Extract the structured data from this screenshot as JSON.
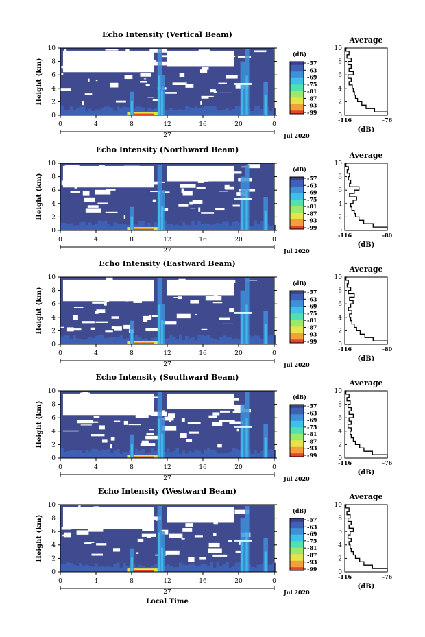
{
  "chart_data": [
    {
      "type": "heatmap",
      "title": "Echo Intensity (Vertical Beam)",
      "ylabel": "Height (km)",
      "y_ticks": [
        "0",
        "2",
        "4",
        "6",
        "8",
        "10"
      ],
      "x_ticks": [
        "0",
        "4",
        "8",
        "12",
        "16",
        "20",
        "0"
      ],
      "date_label": "27",
      "month_year": "Jul 2020",
      "colorbar": {
        "unit": "(dB)",
        "ticks": [
          "-57",
          "-63",
          "-69",
          "-75",
          "-81",
          "-87",
          "-93",
          "-99"
        ]
      },
      "average": {
        "title": "Average",
        "xlabel": "(dB)",
        "x_ticks": [
          "-116",
          "-76"
        ],
        "y_ticks": [
          "0",
          "2",
          "4",
          "6",
          "8",
          "10"
        ],
        "height": [
          0,
          0.5,
          1,
          1.5,
          2,
          2.5,
          3,
          3.5,
          4,
          4.5,
          5,
          5.5,
          6,
          6.5,
          7,
          7.5,
          8,
          8.5,
          9,
          9.5,
          10
        ],
        "db": [
          -76,
          -88,
          -96,
          -100,
          -104,
          -106,
          -107,
          -108,
          -109,
          -112,
          -110,
          -113,
          -108,
          -112,
          -110,
          -113,
          -110,
          -114,
          -112,
          -115,
          -114
        ]
      }
    },
    {
      "type": "heatmap",
      "title": "Echo Intensity (Northward Beam)",
      "ylabel": "Height (km)",
      "y_ticks": [
        "0",
        "2",
        "4",
        "6",
        "8",
        "10"
      ],
      "x_ticks": [
        "0",
        "4",
        "8",
        "12",
        "16",
        "20",
        "0"
      ],
      "date_label": "27",
      "month_year": "Jul 2020",
      "colorbar": {
        "unit": "(dB)",
        "ticks": [
          "-57",
          "-63",
          "-69",
          "-75",
          "-81",
          "-87",
          "-93",
          "-99"
        ]
      },
      "average": {
        "title": "Average",
        "xlabel": "(dB)",
        "x_ticks": [
          "-116",
          "-80"
        ],
        "y_ticks": [
          "0",
          "2",
          "4",
          "6",
          "8",
          "10"
        ],
        "height": [
          0,
          0.5,
          1,
          1.5,
          2,
          2.5,
          3,
          3.5,
          4,
          4.5,
          5,
          5.5,
          6,
          6.5,
          7,
          7.5,
          8,
          8.5,
          9,
          9.5,
          10
        ],
        "db": [
          -80,
          -92,
          -100,
          -104,
          -107,
          -108,
          -110,
          -111,
          -109,
          -106,
          -112,
          -108,
          -104,
          -112,
          -111,
          -113,
          -112,
          -114,
          -113,
          -115,
          -114
        ]
      }
    },
    {
      "type": "heatmap",
      "title": "Echo Intensity (Eastward Beam)",
      "ylabel": "Height (km)",
      "y_ticks": [
        "0",
        "2",
        "4",
        "6",
        "8",
        "10"
      ],
      "x_ticks": [
        "0",
        "4",
        "8",
        "12",
        "16",
        "20",
        "0"
      ],
      "date_label": "27",
      "month_year": "Jul 2020",
      "colorbar": {
        "unit": "(dB)",
        "ticks": [
          "-57",
          "-63",
          "-69",
          "-75",
          "-81",
          "-87",
          "-93",
          "-99"
        ]
      },
      "average": {
        "title": "Average",
        "xlabel": "(dB)",
        "x_ticks": [
          "-116",
          "-80"
        ],
        "y_ticks": [
          "0",
          "2",
          "4",
          "6",
          "8",
          "10"
        ],
        "height": [
          0,
          0.5,
          1,
          1.5,
          2,
          2.5,
          3,
          3.5,
          4,
          4.5,
          5,
          5.5,
          6,
          6.5,
          7,
          7.5,
          8,
          8.5,
          9,
          9.5,
          10
        ],
        "db": [
          -80,
          -92,
          -99,
          -103,
          -106,
          -108,
          -110,
          -111,
          -112,
          -110,
          -113,
          -111,
          -109,
          -112,
          -108,
          -113,
          -111,
          -114,
          -113,
          -115,
          -114
        ]
      }
    },
    {
      "type": "heatmap",
      "title": "Echo Intensity (Southward Beam)",
      "ylabel": "Height (km)",
      "y_ticks": [
        "0",
        "2",
        "4",
        "6",
        "8",
        "10"
      ],
      "x_ticks": [
        "0",
        "4",
        "8",
        "12",
        "16",
        "20",
        "0"
      ],
      "date_label": "27",
      "month_year": "Jul 2020",
      "colorbar": {
        "unit": "(dB)",
        "ticks": [
          "-57",
          "-63",
          "-69",
          "-75",
          "-81",
          "-87",
          "-93",
          "-99"
        ]
      },
      "average": {
        "title": "Average",
        "xlabel": "(dB)",
        "x_ticks": [
          "-116",
          "-76"
        ],
        "y_ticks": [
          "0",
          "2",
          "4",
          "6",
          "8",
          "10"
        ],
        "height": [
          0,
          0.5,
          1,
          1.5,
          2,
          2.5,
          3,
          3.5,
          4,
          4.5,
          5,
          5.5,
          6,
          6.5,
          7,
          7.5,
          8,
          8.5,
          9,
          9.5,
          10
        ],
        "db": [
          -76,
          -90,
          -98,
          -102,
          -106,
          -108,
          -110,
          -111,
          -110,
          -113,
          -110,
          -112,
          -108,
          -112,
          -110,
          -113,
          -111,
          -114,
          -112,
          -115,
          -114
        ]
      }
    },
    {
      "type": "heatmap",
      "title": "Echo Intensity (Westward Beam)",
      "ylabel": "Height (km)",
      "xlabel": "Local Time",
      "y_ticks": [
        "0",
        "2",
        "4",
        "6",
        "8",
        "10"
      ],
      "x_ticks": [
        "0",
        "4",
        "8",
        "12",
        "16",
        "20",
        "0"
      ],
      "date_label": "27",
      "month_year": "Jul 2020",
      "colorbar": {
        "unit": "(dB)",
        "ticks": [
          "-57",
          "-63",
          "-69",
          "-75",
          "-81",
          "-87",
          "-93",
          "-99"
        ]
      },
      "average": {
        "title": "Average",
        "xlabel": "(dB)",
        "x_ticks": [
          "-116",
          "-76"
        ],
        "y_ticks": [
          "0",
          "2",
          "4",
          "6",
          "8",
          "10"
        ],
        "height": [
          0,
          0.5,
          1,
          1.5,
          2,
          2.5,
          3,
          3.5,
          4,
          4.5,
          5,
          5.5,
          6,
          6.5,
          7,
          7.5,
          8,
          8.5,
          9,
          9.5,
          10
        ],
        "db": [
          -76,
          -90,
          -98,
          -102,
          -106,
          -108,
          -110,
          -111,
          -112,
          -110,
          -113,
          -111,
          -108,
          -112,
          -110,
          -113,
          -111,
          -114,
          -112,
          -115,
          -114
        ]
      }
    }
  ],
  "colors": {
    "background_echo": "#3f4a8f",
    "colormap": [
      "#3b3f8c",
      "#3f61b5",
      "#3f8fd9",
      "#3ec1e8",
      "#52e0b0",
      "#9be86a",
      "#e8e34a",
      "#f4a03a",
      "#e8442a"
    ]
  }
}
